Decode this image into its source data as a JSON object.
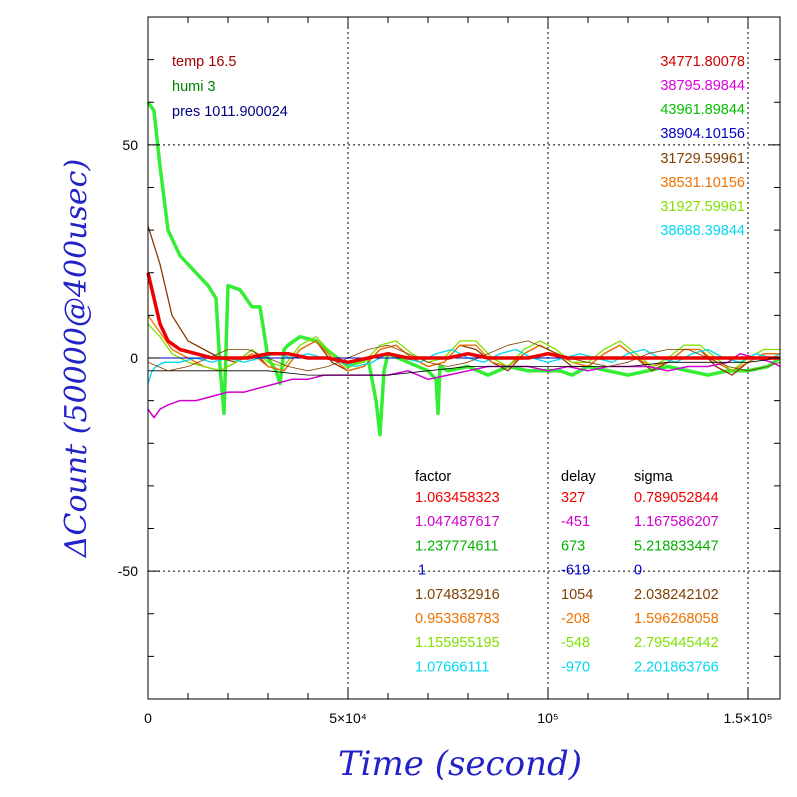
{
  "chart_data": {
    "type": "line",
    "xlabel": "Time (second)",
    "ylabel": "ΔCount (50000@400usec)",
    "xlim": [
      0,
      158000
    ],
    "ylim": [
      -80,
      80
    ],
    "grid": true,
    "x_tick_labels": [
      {
        "value": 0,
        "label": "0"
      },
      {
        "value": 50000,
        "label": "5×10⁴"
      },
      {
        "value": 100000,
        "label": "10⁵"
      },
      {
        "value": 150000,
        "label": "1.5×10⁵"
      }
    ],
    "y_tick_labels": [
      {
        "value": 50,
        "label": "50"
      },
      {
        "value": 0,
        "label": "0"
      },
      {
        "value": -50,
        "label": "-50"
      }
    ],
    "conditions": [
      {
        "text": "temp 16.5",
        "color": "#a00000"
      },
      {
        "text": "humi 3",
        "color": "#008000"
      },
      {
        "text": "pres 1011.900024",
        "color": "#000080"
      }
    ],
    "means": [
      {
        "text": "34771.80078",
        "color": "#cc0000"
      },
      {
        "text": "38795.89844",
        "color": "#e000e0"
      },
      {
        "text": "43961.89844",
        "color": "#00c000"
      },
      {
        "text": "38904.10156",
        "color": "#0000c0"
      },
      {
        "text": "31729.59961",
        "color": "#804000"
      },
      {
        "text": "38531.10156",
        "color": "#f07000"
      },
      {
        "text": "31927.59961",
        "color": "#80e000"
      },
      {
        "text": "38688.39844",
        "color": "#00d8f0"
      }
    ],
    "table": {
      "headers": [
        "factor",
        "delay",
        "sigma"
      ],
      "rows": [
        {
          "factor": "1.063458323",
          "delay": "327",
          "sigma": "0.789052844",
          "color": "#ee0000"
        },
        {
          "factor": "1.047487617",
          "delay": "-451",
          "sigma": "1.167586207",
          "color": "#d000d0"
        },
        {
          "factor": "1.237774611",
          "delay": "673",
          "sigma": "5.218833447",
          "color": "#00b000"
        },
        {
          "factor": "1",
          "delay": "-619",
          "sigma": "0",
          "color": "#0000d0"
        },
        {
          "factor": "1.074832916",
          "delay": "1054",
          "sigma": "2.038242102",
          "color": "#804000"
        },
        {
          "factor": "0.953368783",
          "delay": "-208",
          "sigma": "1.596268058",
          "color": "#f07000"
        },
        {
          "factor": "1.155955195",
          "delay": "-548",
          "sigma": "2.795445442",
          "color": "#80e000"
        },
        {
          "factor": "1.07666111",
          "delay": "-970",
          "sigma": "2.201863766",
          "color": "#00d8f0"
        }
      ]
    },
    "series": [
      {
        "color": "#33ee33",
        "width": 3.5,
        "x": [
          0,
          1500,
          3000,
          5000,
          8000,
          12000,
          15000,
          17000,
          18000,
          19000,
          20000,
          23000,
          26000,
          28000,
          30000,
          32000,
          33000,
          34000,
          35000,
          38000,
          42000,
          46000,
          50000,
          55000,
          57000,
          58000,
          59000,
          60000,
          65000,
          70000,
          72000,
          72500,
          73000,
          75000,
          80000,
          85000,
          90000,
          95000,
          100000,
          103000,
          106000,
          108000,
          110000,
          115000,
          120000,
          125000,
          130000,
          135000,
          140000,
          145000,
          150000,
          155000,
          158000
        ],
        "y": [
          60,
          58,
          45,
          30,
          24,
          20,
          17,
          14,
          -2,
          -13,
          17,
          16,
          12,
          12,
          0,
          -3,
          -6,
          2,
          3,
          5,
          4,
          1,
          -2,
          0,
          -10,
          -18,
          -3,
          1,
          -1,
          -3,
          -5,
          -13,
          -2,
          -3,
          -2,
          -4,
          -2,
          -3,
          -3,
          -3,
          -4,
          -3,
          -2,
          -3,
          -4,
          -3,
          -2,
          -3,
          -4,
          -3,
          -3,
          -2,
          0
        ]
      },
      {
        "color": "#8b3a00",
        "width": 1.3,
        "x": [
          0,
          3000,
          6000,
          10000,
          14000,
          18000,
          22000,
          26000,
          30000,
          34000,
          38000,
          42000,
          46000,
          50000,
          54000,
          58000,
          62000,
          66000,
          70000,
          74000,
          78000,
          82000,
          86000,
          90000,
          94000,
          98000,
          102000,
          106000,
          110000,
          114000,
          118000,
          122000,
          126000,
          130000,
          134000,
          138000,
          142000,
          146000,
          150000,
          154000,
          158000
        ],
        "y": [
          31,
          22,
          10,
          4,
          2,
          0,
          -1,
          2,
          -2,
          -3,
          2,
          4,
          -1,
          -3,
          -2,
          2,
          3,
          0,
          -2,
          -1,
          3,
          2,
          -1,
          -3,
          1,
          3,
          1,
          -2,
          -2,
          1,
          3,
          0,
          -3,
          -1,
          2,
          2,
          -2,
          -4,
          -1,
          1,
          1
        ]
      },
      {
        "color": "#f07000",
        "width": 1.3,
        "x": [
          0,
          3000,
          6000,
          10000,
          14000,
          18000,
          22000,
          26000,
          30000,
          34000,
          38000,
          42000,
          46000,
          50000,
          54000,
          58000,
          62000,
          66000,
          70000,
          74000,
          78000,
          82000,
          86000,
          90000,
          94000,
          98000,
          102000,
          106000,
          110000,
          114000,
          118000,
          122000,
          126000,
          130000,
          134000,
          138000,
          142000,
          146000,
          150000,
          154000,
          158000
        ],
        "y": [
          10,
          6,
          2,
          0,
          -2,
          -3,
          -1,
          1,
          -2,
          -3,
          2,
          4,
          0,
          -3,
          -2,
          2,
          3,
          0,
          -2,
          -1,
          3,
          3,
          -1,
          -2,
          1,
          3,
          1,
          -1,
          -2,
          1,
          3,
          0,
          -2,
          -1,
          2,
          2,
          -1,
          -3,
          -1,
          1,
          1
        ]
      },
      {
        "color": "#80e000",
        "width": 1.3,
        "x": [
          0,
          3000,
          6000,
          10000,
          14000,
          18000,
          22000,
          26000,
          30000,
          34000,
          38000,
          42000,
          46000,
          50000,
          54000,
          58000,
          62000,
          66000,
          70000,
          74000,
          78000,
          82000,
          86000,
          90000,
          94000,
          98000,
          102000,
          106000,
          110000,
          114000,
          118000,
          122000,
          126000,
          130000,
          134000,
          138000,
          142000,
          146000,
          150000,
          154000,
          158000
        ],
        "y": [
          8,
          5,
          1,
          -1,
          -2,
          -3,
          -1,
          2,
          -1,
          -2,
          3,
          5,
          1,
          -2,
          -1,
          3,
          4,
          1,
          -1,
          0,
          4,
          4,
          0,
          -2,
          2,
          4,
          2,
          -1,
          -1,
          2,
          4,
          1,
          -2,
          0,
          3,
          3,
          0,
          -3,
          0,
          2,
          2
        ]
      },
      {
        "color": "#00d8f0",
        "width": 1.3,
        "x": [
          0,
          1000,
          2000,
          4000,
          8000,
          12000,
          16000,
          20000,
          24000,
          28000,
          32000,
          36000,
          40000,
          44000,
          48000,
          52000,
          56000,
          60000,
          64000,
          68000,
          72000,
          76000,
          80000,
          84000,
          88000,
          92000,
          96000,
          100000,
          104000,
          108000,
          112000,
          116000,
          120000,
          124000,
          128000,
          132000,
          136000,
          140000,
          144000,
          148000,
          152000,
          156000,
          158000
        ],
        "y": [
          -6,
          -3,
          -2,
          -1,
          -1,
          0,
          -1,
          0,
          -1,
          0,
          1,
          0,
          1,
          0,
          -1,
          -2,
          -1,
          1,
          0,
          -1,
          1,
          2,
          0,
          -1,
          1,
          2,
          0,
          -1,
          0,
          1,
          0,
          -1,
          1,
          2,
          0,
          -1,
          1,
          2,
          0,
          -1,
          1,
          0,
          1
        ]
      },
      {
        "color": "#d000d0",
        "width": 1.5,
        "x": [
          0,
          1500,
          3000,
          5000,
          8000,
          12000,
          16000,
          20000,
          24000,
          28000,
          32000,
          36000,
          40000,
          44000,
          48000,
          52000,
          56000,
          60000,
          65000,
          70000,
          75000,
          80000,
          85000,
          90000,
          95000,
          100000,
          105000,
          110000,
          115000,
          120000,
          125000,
          130000,
          135000,
          140000,
          145000,
          148000,
          152000,
          156000,
          158000
        ],
        "y": [
          -12,
          -14,
          -12,
          -11,
          -10,
          -10,
          -9,
          -8,
          -8,
          -7,
          -6,
          -5,
          -5,
          -4,
          -4,
          -4,
          -4,
          -4,
          -3,
          -5,
          -4,
          -3,
          -2,
          -2,
          -2,
          -3,
          -2,
          -3,
          -2,
          -2,
          -2,
          -3,
          -2,
          -2,
          -1,
          1,
          0,
          -1,
          -2
        ]
      },
      {
        "color": "#000000",
        "width": 0.8,
        "x": [
          0,
          10000,
          20000,
          30000,
          40000,
          50000,
          60000,
          70000,
          80000,
          90000,
          100000,
          110000,
          120000,
          130000,
          140000,
          150000,
          158000
        ],
        "y": [
          -3,
          -3,
          -3,
          -3,
          -4,
          -4,
          -4,
          -3,
          -2,
          -2,
          -2,
          -2,
          -2,
          -1,
          -1,
          -1,
          0
        ]
      },
      {
        "color": "#804000",
        "width": 0.8,
        "x": [
          0,
          5000,
          10000,
          15000,
          20000,
          25000,
          30000,
          35000,
          40000,
          45000,
          50000,
          55000,
          60000,
          65000,
          70000,
          75000,
          80000,
          85000,
          90000,
          95000,
          100000,
          105000,
          110000,
          115000,
          120000,
          125000,
          130000,
          135000,
          140000,
          145000,
          150000,
          155000,
          158000
        ],
        "y": [
          -1,
          -3,
          -2,
          0,
          2,
          2,
          0,
          -2,
          -3,
          -2,
          0,
          2,
          3,
          1,
          -1,
          -2,
          -1,
          1,
          3,
          4,
          2,
          0,
          -1,
          -2,
          -1,
          1,
          2,
          2,
          0,
          -2,
          -3,
          -2,
          -1
        ]
      },
      {
        "color": "#0000c0",
        "width": 1.0,
        "x": [
          0,
          20000,
          40000,
          60000,
          80000,
          100000,
          120000,
          140000,
          158000
        ],
        "y": [
          0,
          0,
          0,
          0,
          0,
          0,
          0,
          0,
          0
        ]
      },
      {
        "color": "#ee0000",
        "width": 3.5,
        "x": [
          0,
          1500,
          3000,
          5000,
          8000,
          12000,
          16000,
          20000,
          25000,
          30000,
          35000,
          40000,
          45000,
          50000,
          55000,
          60000,
          65000,
          70000,
          75000,
          80000,
          85000,
          90000,
          95000,
          100000,
          105000,
          110000,
          115000,
          120000,
          125000,
          130000,
          135000,
          140000,
          145000,
          150000,
          155000,
          158000
        ],
        "y": [
          20,
          14,
          8,
          4,
          2,
          1,
          0,
          0,
          0,
          1,
          1,
          0,
          0,
          -1,
          0,
          1,
          0,
          0,
          0,
          1,
          0,
          0,
          0,
          1,
          0,
          0,
          0,
          0,
          0,
          0,
          0,
          0,
          0,
          0,
          0,
          0
        ]
      }
    ]
  }
}
